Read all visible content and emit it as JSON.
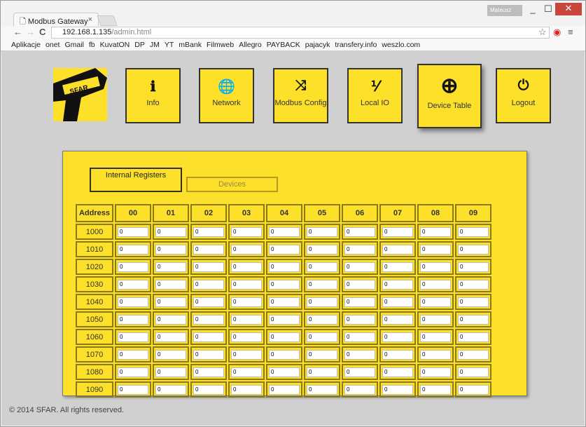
{
  "browser": {
    "tab_title": "Modbus Gateway",
    "user": "Mateusz",
    "url_host": "192.168.1.135",
    "url_path": "/admin.html",
    "bookmarks": [
      "Aplikacje",
      "onet",
      "Gmail",
      "fb",
      "KuvatON",
      "DP",
      "JM",
      "YT",
      "mBank",
      "Filmweb",
      "Allegro",
      "PAYBACK",
      "pajacyk",
      "transfery.info",
      "weszlo.com"
    ]
  },
  "logo": "SFAR",
  "nav": [
    {
      "label": "Info",
      "icon": "info-icon",
      "glyph": "ℹ"
    },
    {
      "label": "Network",
      "icon": "globe-icon",
      "glyph": "🌐"
    },
    {
      "label": "Modbus Config",
      "icon": "shuffle-icon",
      "glyph": "⤨"
    },
    {
      "label": "Local IO",
      "icon": "percent-icon",
      "glyph": "⅟"
    },
    {
      "label": "Device Table",
      "icon": "plus-circle-icon",
      "glyph": "⊕",
      "active": true
    },
    {
      "label": "Logout",
      "icon": "power-icon",
      "glyph": "⏻"
    }
  ],
  "tabs": {
    "internal": "Internal Registers",
    "devices": "Devices"
  },
  "table": {
    "headers": [
      "Address",
      "00",
      "01",
      "02",
      "03",
      "04",
      "05",
      "06",
      "07",
      "08",
      "09"
    ],
    "rows": [
      {
        "address": "1000",
        "values": [
          "0",
          "0",
          "0",
          "0",
          "0",
          "0",
          "0",
          "0",
          "0",
          "0"
        ]
      },
      {
        "address": "1010",
        "values": [
          "0",
          "0",
          "0",
          "0",
          "0",
          "0",
          "0",
          "0",
          "0",
          "0"
        ]
      },
      {
        "address": "1020",
        "values": [
          "0",
          "0",
          "0",
          "0",
          "0",
          "0",
          "0",
          "0",
          "0",
          "0"
        ]
      },
      {
        "address": "1030",
        "values": [
          "0",
          "0",
          "0",
          "0",
          "0",
          "0",
          "0",
          "0",
          "0",
          "0"
        ]
      },
      {
        "address": "1040",
        "values": [
          "0",
          "0",
          "0",
          "0",
          "0",
          "0",
          "0",
          "0",
          "0",
          "0"
        ]
      },
      {
        "address": "1050",
        "values": [
          "0",
          "0",
          "0",
          "0",
          "0",
          "0",
          "0",
          "0",
          "0",
          "0"
        ]
      },
      {
        "address": "1060",
        "values": [
          "0",
          "0",
          "0",
          "0",
          "0",
          "0",
          "0",
          "0",
          "0",
          "0"
        ]
      },
      {
        "address": "1070",
        "values": [
          "0",
          "0",
          "0",
          "0",
          "0",
          "0",
          "0",
          "0",
          "0",
          "0"
        ]
      },
      {
        "address": "1080",
        "values": [
          "0",
          "0",
          "0",
          "0",
          "0",
          "0",
          "0",
          "0",
          "0",
          "0"
        ]
      },
      {
        "address": "1090",
        "values": [
          "0",
          "0",
          "0",
          "0",
          "0",
          "0",
          "0",
          "0",
          "0",
          "0"
        ]
      }
    ]
  },
  "footer": "© 2014 SFAR. All rights reserved."
}
